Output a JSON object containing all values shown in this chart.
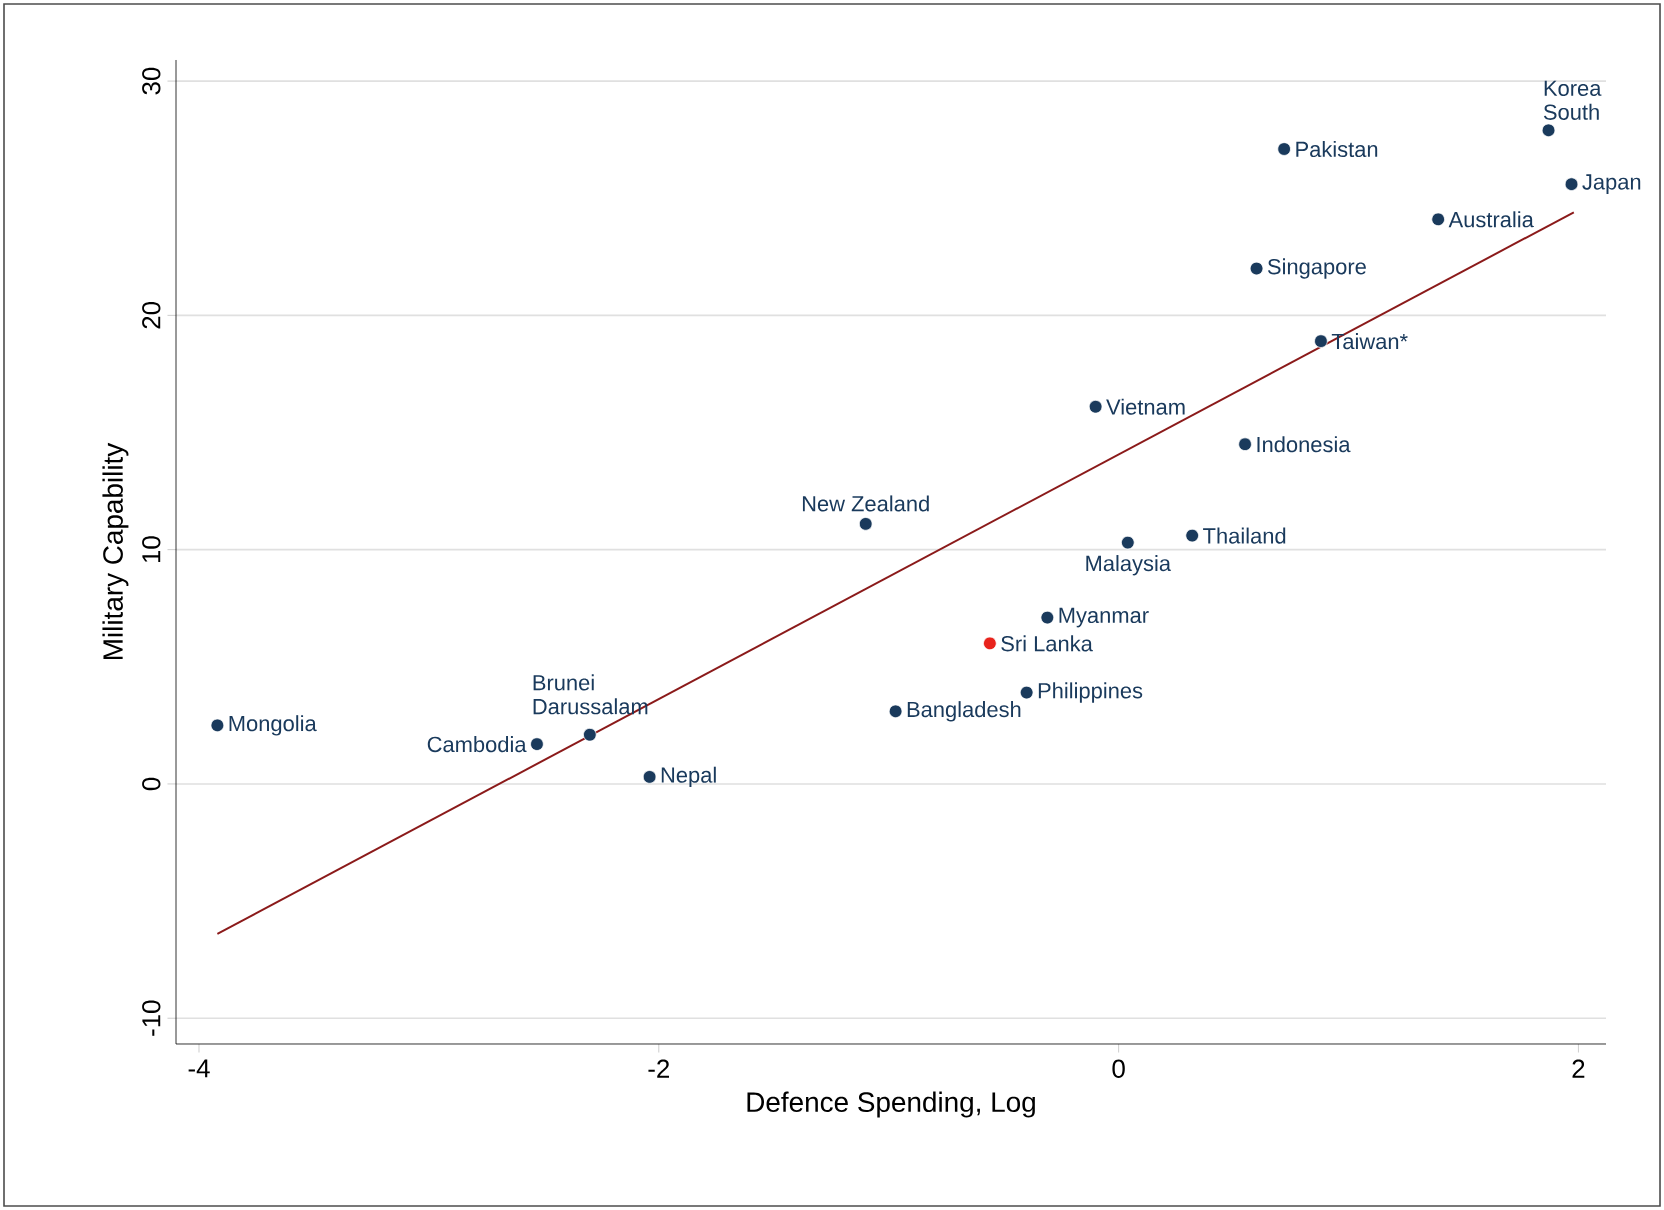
{
  "chart_data": {
    "type": "scatter",
    "xlabel": "Defence Spending, Log",
    "ylabel": "Military Capability",
    "xlim": [
      -4.1,
      2.12
    ],
    "ylim": [
      -11.1,
      30.9
    ],
    "xticks": [
      -4,
      -2,
      0,
      2
    ],
    "yticks": [
      -10,
      0,
      10,
      20,
      30
    ],
    "grid": "y",
    "series": [
      {
        "marker": "circle",
        "x": [
          -3.92,
          -2.53,
          -2.3,
          -2.04,
          -1.1,
          -0.97,
          -0.56,
          -0.31,
          -0.4,
          -0.1,
          0.04,
          0.32,
          0.55,
          0.6,
          0.88,
          0.72,
          1.39,
          1.87,
          1.97
        ],
        "values": [
          2.5,
          1.7,
          2.1,
          0.3,
          11.1,
          3.1,
          6.0,
          7.1,
          3.9,
          16.1,
          10.3,
          10.6,
          14.5,
          22.0,
          18.9,
          27.1,
          24.1,
          27.9,
          25.6
        ],
        "colors": [
          "#1a3a5c",
          "#1a3a5c",
          "#1a3a5c",
          "#1a3a5c",
          "#1a3a5c",
          "#1a3a5c",
          "#e8231c",
          "#1a3a5c",
          "#1a3a5c",
          "#1a3a5c",
          "#1a3a5c",
          "#1a3a5c",
          "#1a3a5c",
          "#1a3a5c",
          "#1a3a5c",
          "#1a3a5c",
          "#1a3a5c",
          "#1a3a5c",
          "#1a3a5c"
        ]
      },
      {
        "type": "line",
        "marker": "none",
        "color": "#8b1a1a",
        "x": [
          -3.92,
          1.98
        ],
        "values": [
          -6.4,
          24.4
        ]
      }
    ],
    "annotations": [
      {
        "text": "Mongolia",
        "x": -3.92,
        "y": 2.5
      },
      {
        "text": "Cambodia",
        "x": -2.53,
        "y": 1.7
      },
      {
        "text": "Brunei Darussalam",
        "x": -2.3,
        "y": 2.1
      },
      {
        "text": "Nepal",
        "x": -2.04,
        "y": 0.3
      },
      {
        "text": "New Zealand",
        "x": -1.1,
        "y": 11.1
      },
      {
        "text": "Bangladesh",
        "x": -0.97,
        "y": 3.1
      },
      {
        "text": "Sri Lanka",
        "x": -0.56,
        "y": 6.0
      },
      {
        "text": "Myanmar",
        "x": -0.31,
        "y": 7.1
      },
      {
        "text": "Philippines",
        "x": -0.4,
        "y": 3.9
      },
      {
        "text": "Vietnam",
        "x": -0.1,
        "y": 16.1
      },
      {
        "text": "Malaysia",
        "x": 0.04,
        "y": 10.3
      },
      {
        "text": "Thailand",
        "x": 0.32,
        "y": 10.6
      },
      {
        "text": "Indonesia",
        "x": 0.55,
        "y": 14.5
      },
      {
        "text": "Singapore",
        "x": 0.6,
        "y": 22.0
      },
      {
        "text": "Taiwan*",
        "x": 0.88,
        "y": 18.9
      },
      {
        "text": "Pakistan",
        "x": 0.72,
        "y": 27.1
      },
      {
        "text": "Australia",
        "x": 1.39,
        "y": 24.1
      },
      {
        "text": "Korea South",
        "x": 1.87,
        "y": 27.9
      },
      {
        "text": "Japan",
        "x": 1.97,
        "y": 25.6
      }
    ]
  }
}
